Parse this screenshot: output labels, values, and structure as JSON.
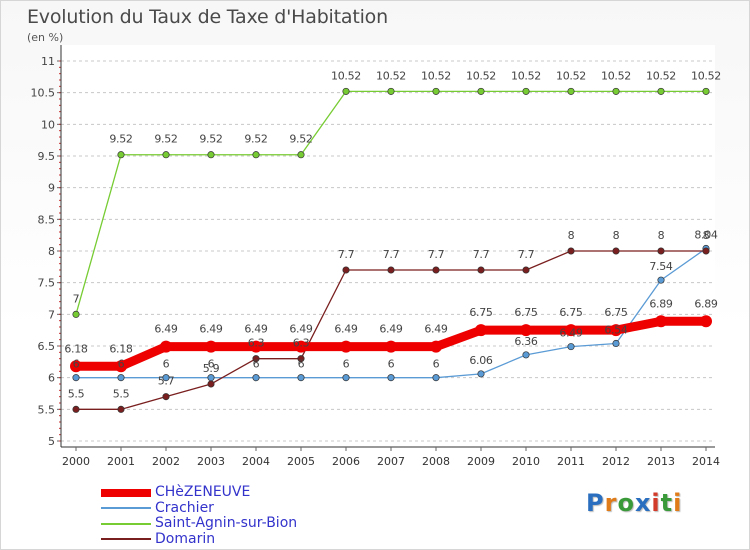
{
  "title": "Evolution du Taux de Taxe d'Habitation",
  "unit": "(en %)",
  "logo": {
    "letters": [
      {
        "ch": "P",
        "color": "#2a6fbf"
      },
      {
        "ch": "r",
        "color": "#e07b1a"
      },
      {
        "ch": "o",
        "color": "#3a9a3a"
      },
      {
        "ch": "x",
        "color": "#2a6fbf"
      },
      {
        "ch": "i",
        "color": "#d23a2a"
      },
      {
        "ch": "t",
        "color": "#3a9a3a"
      },
      {
        "ch": "i",
        "color": "#e07b1a"
      }
    ]
  },
  "chart_data": {
    "type": "line",
    "x": [
      "2000",
      "2001",
      "2002",
      "2003",
      "2004",
      "2005",
      "2006",
      "2007",
      "2008",
      "2009",
      "2010",
      "2011",
      "2012",
      "2013",
      "2014"
    ],
    "ylim": [
      5,
      11
    ],
    "yticks": [
      "5",
      "5.5",
      "6",
      "6.5",
      "7",
      "7.5",
      "8",
      "8.5",
      "9",
      "9.5",
      "10",
      "10.5",
      "11"
    ],
    "grid": "horizontal dashed",
    "legend_position": "bottom-left",
    "series": [
      {
        "name": "CHèZENEUVE",
        "color": "#ee0000",
        "width": 9,
        "values": [
          6.18,
          6.18,
          6.49,
          6.49,
          6.49,
          6.49,
          6.49,
          6.49,
          6.49,
          6.75,
          6.75,
          6.75,
          6.75,
          6.89,
          6.89
        ],
        "labels": [
          "6.18",
          "6.18",
          "6.49",
          "6.49",
          "6.49",
          "6.49",
          "6.49",
          "6.49",
          "6.49",
          "6.75",
          "6.75",
          "6.75",
          "6.75",
          "6.89",
          "6.89"
        ]
      },
      {
        "name": "Crachier",
        "color": "#5b9bd5",
        "width": 1.3,
        "values": [
          6,
          6,
          6,
          6,
          6,
          6,
          6,
          6,
          6,
          6.06,
          6.36,
          6.49,
          6.54,
          7.54,
          8.04
        ],
        "labels": [
          "6",
          "6",
          "6",
          "6",
          "6",
          "6",
          "6",
          "6",
          "6",
          "6.06",
          "6.36",
          "6.49",
          "6.54",
          "7.54",
          "8.04"
        ]
      },
      {
        "name": "Saint-Agnin-sur-Bion",
        "color": "#77cc33",
        "width": 1.3,
        "values": [
          7,
          9.52,
          9.52,
          9.52,
          9.52,
          9.52,
          10.52,
          10.52,
          10.52,
          10.52,
          10.52,
          10.52,
          10.52,
          10.52,
          10.52
        ],
        "labels": [
          "7",
          "9.52",
          "9.52",
          "9.52",
          "9.52",
          "9.52",
          "10.52",
          "10.52",
          "10.52",
          "10.52",
          "10.52",
          "10.52",
          "10.52",
          "10.52",
          "10.52"
        ]
      },
      {
        "name": "Domarin",
        "color": "#7a1f1f",
        "width": 1.3,
        "values": [
          5.5,
          5.5,
          5.7,
          5.9,
          6.3,
          6.3,
          7.7,
          7.7,
          7.7,
          7.7,
          7.7,
          8,
          8,
          8,
          8
        ],
        "labels": [
          "5.5",
          "5.5",
          "5.7",
          "5.9",
          "6.3",
          "6.3",
          "7.7",
          "7.7",
          "7.7",
          "7.7",
          "7.7",
          "8",
          "8",
          "8",
          "8"
        ]
      }
    ]
  }
}
